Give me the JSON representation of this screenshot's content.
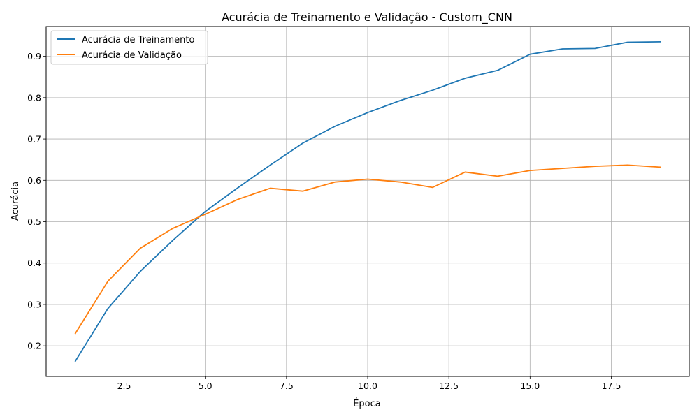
{
  "chart_data": {
    "type": "line",
    "title": "Acurácia de Treinamento e Validação - Custom_CNN",
    "xlabel": "Época",
    "ylabel": "Acurácia",
    "xlim": [
      0.1,
      19.9
    ],
    "ylim": [
      0.126,
      0.972
    ],
    "xticks": [
      2.5,
      5.0,
      7.5,
      10.0,
      12.5,
      15.0,
      17.5
    ],
    "xtick_labels": [
      "2.5",
      "5.0",
      "7.5",
      "10.0",
      "12.5",
      "15.0",
      "17.5"
    ],
    "yticks": [
      0.2,
      0.3,
      0.4,
      0.5,
      0.6,
      0.7,
      0.8,
      0.9
    ],
    "ytick_labels": [
      "0.2",
      "0.3",
      "0.4",
      "0.5",
      "0.6",
      "0.7",
      "0.8",
      "0.9"
    ],
    "grid": true,
    "legend_position": "upper-left",
    "x": [
      1,
      2,
      3,
      4,
      5,
      6,
      7,
      8,
      9,
      10,
      11,
      12,
      13,
      14,
      15,
      16,
      17,
      18,
      19
    ],
    "series": [
      {
        "name": "Acurácia de Treinamento",
        "color": "#1f77b4",
        "values": [
          0.163,
          0.29,
          0.38,
          0.455,
          0.525,
          0.582,
          0.637,
          0.69,
          0.731,
          0.764,
          0.793,
          0.818,
          0.847,
          0.866,
          0.905,
          0.918,
          0.919,
          0.934,
          0.935
        ]
      },
      {
        "name": "Acurácia de Validação",
        "color": "#ff7f0e",
        "values": [
          0.23,
          0.356,
          0.436,
          0.484,
          0.518,
          0.554,
          0.581,
          0.574,
          0.596,
          0.603,
          0.596,
          0.583,
          0.62,
          0.61,
          0.624,
          0.629,
          0.634,
          0.637,
          0.632
        ]
      }
    ]
  }
}
